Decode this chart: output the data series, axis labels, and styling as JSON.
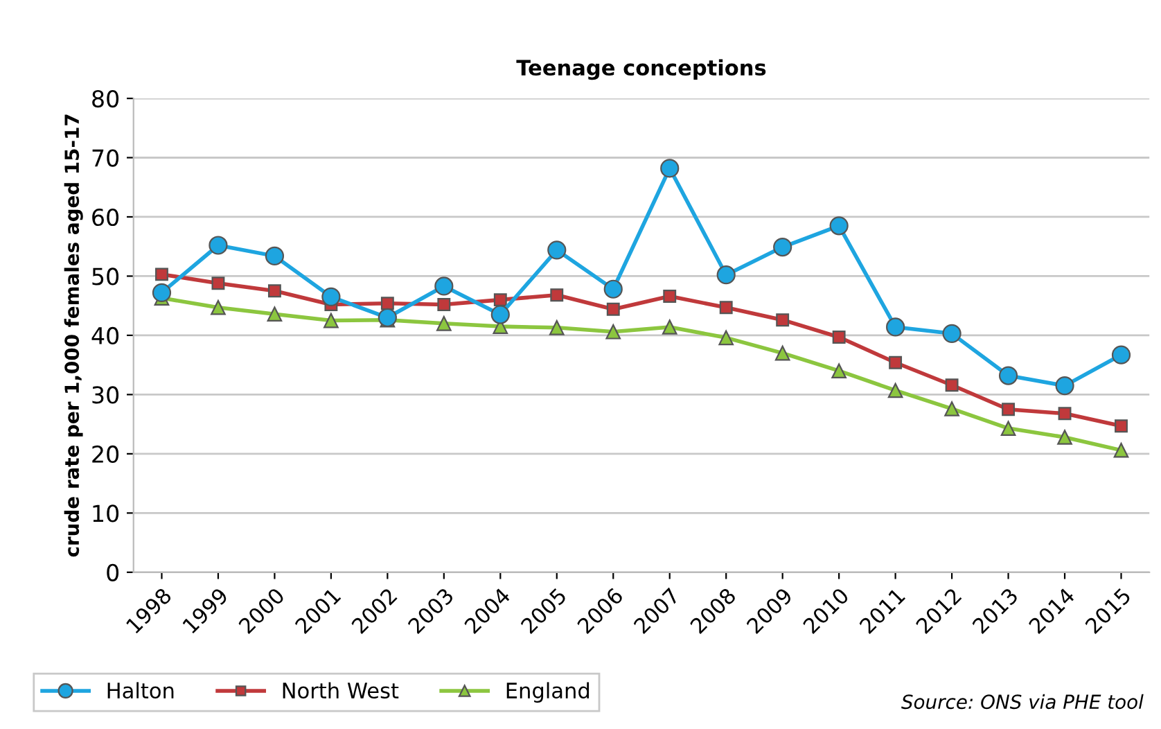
{
  "chart_data": {
    "type": "line",
    "title": "Teenage conceptions",
    "ylabel": "crude rate per 1,000 females aged 15-17",
    "categories": [
      "1998",
      "1999",
      "2000",
      "2001",
      "2002",
      "2003",
      "2004",
      "2005",
      "2006",
      "2007",
      "2008",
      "2009",
      "2010",
      "2011",
      "2012",
      "2013",
      "2014",
      "2015"
    ],
    "series": [
      {
        "name": "Halton",
        "color": "#1ea5e0",
        "marker": "circle",
        "values": [
          47.2,
          55.2,
          53.4,
          46.5,
          43.0,
          48.3,
          43.5,
          54.4,
          47.8,
          68.2,
          50.2,
          54.9,
          58.5,
          41.4,
          40.3,
          33.2,
          31.5,
          36.7
        ]
      },
      {
        "name": "North West",
        "color": "#c0393b",
        "marker": "square",
        "values": [
          50.3,
          48.8,
          47.5,
          45.2,
          45.4,
          45.2,
          46.0,
          46.8,
          44.4,
          46.6,
          44.7,
          42.6,
          39.7,
          35.4,
          31.6,
          27.5,
          26.8,
          24.7
        ]
      },
      {
        "name": "England",
        "color": "#8cc63f",
        "marker": "triangle",
        "values": [
          46.3,
          44.7,
          43.6,
          42.5,
          42.6,
          42.0,
          41.5,
          41.3,
          40.6,
          41.4,
          39.6,
          37.0,
          34.0,
          30.7,
          27.6,
          24.3,
          22.8,
          20.6
        ]
      }
    ],
    "ylim": [
      0,
      80
    ],
    "yticks": [
      0,
      10,
      20,
      30,
      40,
      50,
      60,
      70,
      80
    ],
    "grid": "y",
    "legend": "bottom left",
    "annotations": [
      "Source: ONS via PHE tool"
    ]
  }
}
